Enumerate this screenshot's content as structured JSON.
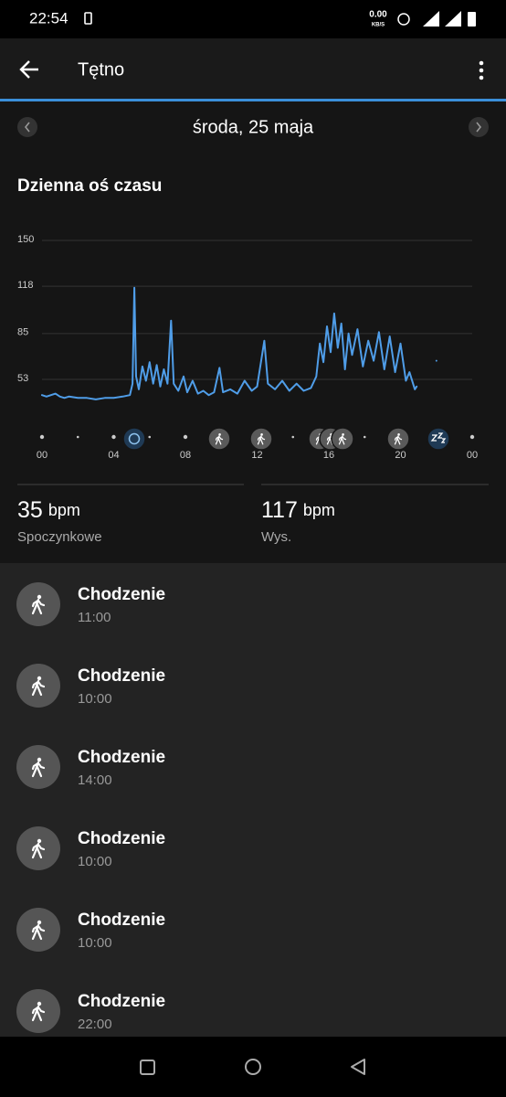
{
  "status_bar": {
    "time": "22:54",
    "speed": "0.00",
    "speed_unit": "KB/S"
  },
  "header": {
    "title": "Tętno"
  },
  "date": "środa, 25 maja",
  "section_title": "Dzienna oś czasu",
  "chart_data": {
    "type": "line",
    "x": [
      0,
      0.25,
      0.5,
      0.75,
      1,
      1.25,
      1.5,
      2,
      2.5,
      3,
      3.5,
      4,
      4.5,
      4.9,
      5.05,
      5.15,
      5.25,
      5.4,
      5.6,
      5.8,
      6,
      6.2,
      6.4,
      6.6,
      6.8,
      7.0,
      7.2,
      7.35,
      7.6,
      7.9,
      8.1,
      8.4,
      8.7,
      9,
      9.3,
      9.6,
      9.9,
      10.1,
      10.5,
      10.9,
      11.3,
      11.7,
      12.0,
      12.4,
      12.6,
      13,
      13.4,
      13.8,
      14.2,
      14.6,
      15,
      15.3,
      15.5,
      15.7,
      15.9,
      16.1,
      16.3,
      16.5,
      16.7,
      16.9,
      17.1,
      17.3,
      17.6,
      17.9,
      18.2,
      18.5,
      18.8,
      19.1,
      19.4,
      19.7,
      20.0,
      20.3,
      20.5,
      20.8,
      20.9,
      21,
      22
    ],
    "series": [
      {
        "color": "#4f9de8",
        "values": [
          42,
          41,
          42,
          43,
          41,
          40,
          41,
          40,
          40,
          39,
          40,
          40,
          41,
          42,
          50,
          117,
          55,
          46,
          62,
          52,
          65,
          50,
          63,
          48,
          60,
          50,
          94,
          50,
          45,
          55,
          44,
          52,
          43,
          45,
          42,
          44,
          61,
          44,
          46,
          43,
          52,
          45,
          48,
          80,
          50,
          46,
          52,
          45,
          50,
          45,
          47,
          55,
          78,
          65,
          90,
          72,
          99,
          75,
          92,
          60,
          85,
          70,
          88,
          62,
          80,
          66,
          86,
          60,
          83,
          58,
          78,
          52,
          58,
          46,
          48,
          null,
          66
        ]
      }
    ],
    "xlim": [
      0,
      24
    ],
    "xticks": [
      {
        "value": 0,
        "label": "00"
      },
      {
        "value": 4,
        "label": "04"
      },
      {
        "value": 8,
        "label": "08"
      },
      12,
      16,
      20,
      {
        "value": 24,
        "label": "00"
      }
    ],
    "ylim": [
      30,
      150
    ],
    "yticks": [
      53,
      85,
      118,
      150
    ],
    "grid": true
  },
  "stats": [
    {
      "value": 35,
      "unit": "bpm",
      "label": "Spoczynkowe"
    },
    {
      "value": 117,
      "unit": "bpm",
      "label": "Wys."
    }
  ],
  "activities": [
    {
      "name": "Chodzenie",
      "time": "11:00"
    },
    {
      "name": "Chodzenie",
      "time": "10:00"
    },
    {
      "name": "Chodzenie",
      "time": "14:00"
    },
    {
      "name": "Chodzenie",
      "time": "10:00"
    },
    {
      "name": "Chodzenie",
      "time": "10:00"
    },
    {
      "name": "Chodzenie",
      "time": "22:00"
    }
  ]
}
